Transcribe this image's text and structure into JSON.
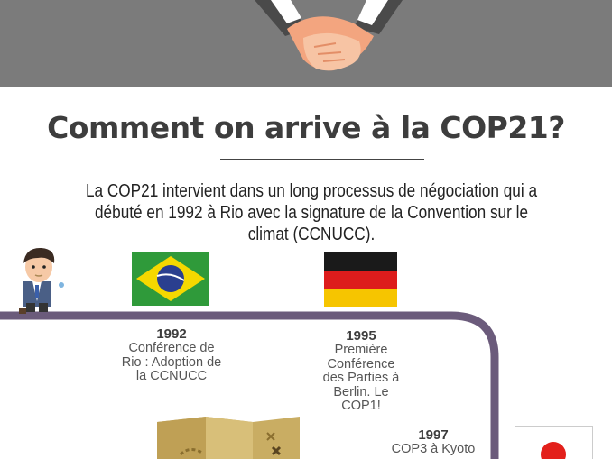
{
  "title": "Comment on arrive à la COP21?",
  "intro": "La COP21 intervient dans un long processus de négociation qui a débuté en 1992 à Rio avec la signature de la Convention sur le climat (CCNUCC).",
  "timeline": [
    {
      "year": "1992",
      "description": "Conférence de Rio : Adoption de la CCNUCC",
      "flag": "brazil-flag-icon"
    },
    {
      "year": "1995",
      "description": "Première Conférence des Parties à Berlin. Le COP1!",
      "flag": "germany-flag-icon"
    },
    {
      "year": "1997",
      "description": "COP3 à Kyoto",
      "flag": "japan-flag-icon"
    }
  ],
  "colors": {
    "banner": "#7b7b7b",
    "timeline": "#6b5b7b",
    "brazil_green": "#2f9a3a",
    "brazil_yellow": "#f5d800",
    "brazil_blue": "#2a3f8f",
    "japan_red": "#e3201b"
  }
}
